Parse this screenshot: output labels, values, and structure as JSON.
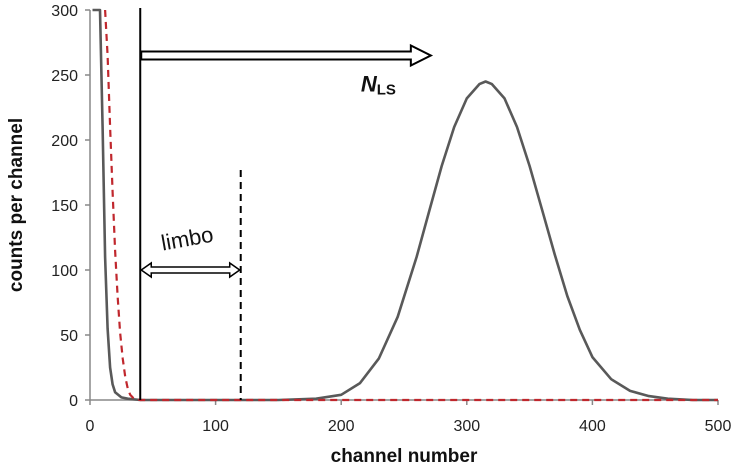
{
  "chart_data": {
    "type": "line",
    "title": "",
    "xlabel": "channel number",
    "ylabel": "counts per channel",
    "xlim": [
      0,
      500
    ],
    "ylim": [
      0,
      300
    ],
    "x_ticks": [
      "0",
      "100",
      "200",
      "300",
      "400",
      "500"
    ],
    "y_ticks": [
      "0",
      "50",
      "100",
      "150",
      "200",
      "250",
      "300"
    ],
    "grid": false,
    "legend": "none",
    "series": [
      {
        "style": "solid",
        "color": "#595959",
        "x": [
          2,
          4,
          6,
          8,
          10,
          12,
          14,
          16,
          18,
          20,
          25,
          30,
          40,
          60,
          100,
          150,
          180,
          200,
          215,
          230,
          245,
          260,
          270,
          280,
          290,
          300,
          310,
          315,
          320,
          330,
          340,
          350,
          360,
          370,
          380,
          390,
          400,
          415,
          430,
          445,
          460,
          480,
          500
        ],
        "y": [
          300,
          300,
          300,
          300,
          210,
          110,
          55,
          25,
          12,
          6,
          2,
          1,
          0,
          0,
          0,
          0,
          1,
          4,
          13,
          32,
          64,
          110,
          145,
          180,
          210,
          232,
          243,
          245,
          243,
          232,
          210,
          180,
          146,
          112,
          80,
          54,
          33,
          16,
          7,
          3,
          1,
          0,
          0
        ]
      },
      {
        "style": "dashed",
        "color": "#c0272d",
        "x": [
          12,
          14,
          16,
          18,
          20,
          22,
          24,
          26,
          28,
          30,
          32,
          35,
          40,
          60,
          100,
          200,
          300,
          400,
          500
        ],
        "y": [
          300,
          265,
          210,
          160,
          115,
          80,
          52,
          32,
          18,
          9,
          4,
          1,
          0,
          0,
          0,
          0,
          0,
          0,
          0
        ]
      }
    ],
    "annotations": {
      "threshold_solid_x": 40,
      "threshold_dashed_x": 120,
      "limbo_label": "limbo",
      "limbo_arrow_y": 100,
      "nls_label_main": "N",
      "nls_label_sub": "LS",
      "nls_arrow_y": 265,
      "nls_arrow_to_x": 265
    }
  }
}
